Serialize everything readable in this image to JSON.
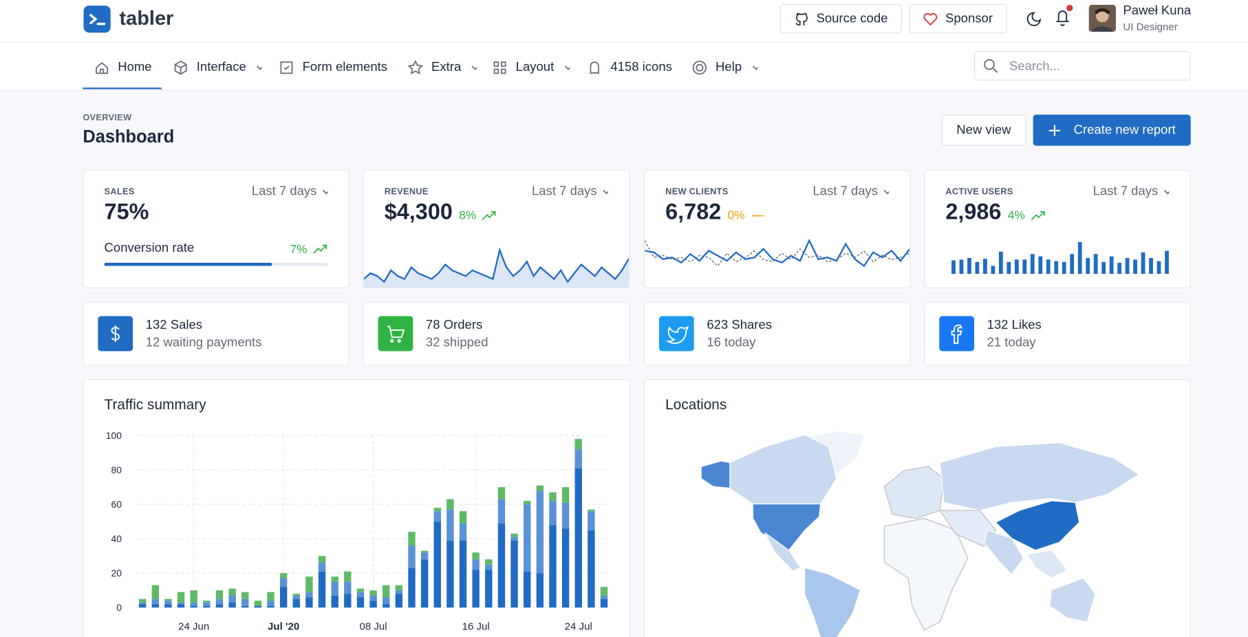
{
  "header": {
    "brand": "tabler",
    "buttons": [
      "Source code",
      "Sponsor"
    ],
    "user": {
      "name": "Paweł Kuna",
      "role": "UI Designer"
    }
  },
  "nav": {
    "items": [
      "Home",
      "Interface",
      "Form elements",
      "Extra",
      "Layout",
      "4158 icons",
      "Help"
    ],
    "search": "Search..."
  },
  "page": {
    "pretitle": "OVERVIEW",
    "title": "Dashboard",
    "actions": [
      "New view",
      "Create new report"
    ]
  },
  "stats": [
    {
      "label": "SALES",
      "period": "Last 7 days",
      "value": "75%",
      "subtitle": "Conversion rate",
      "change": "7%",
      "progress": 75
    },
    {
      "label": "REVENUE",
      "period": "Last 7 days",
      "value": "$4,300",
      "change": "8%",
      "spark": [
        10,
        14,
        12,
        8,
        16,
        12,
        10,
        18,
        14,
        12,
        10,
        14,
        20,
        16,
        14,
        12,
        16,
        14,
        12,
        10,
        30,
        18,
        12,
        16,
        22,
        12,
        18,
        14,
        10,
        16,
        8,
        14,
        20,
        16,
        12,
        18,
        14,
        10,
        16,
        24
      ]
    },
    {
      "label": "NEW CLIENTS",
      "period": "Last 7 days",
      "value": "6,782",
      "change": "0%",
      "spark": [
        22,
        20,
        12,
        14,
        8,
        18,
        10,
        22,
        16,
        10,
        20,
        12,
        14,
        24,
        12,
        8,
        16,
        10,
        34,
        12,
        14,
        10,
        30,
        12,
        4,
        20,
        14,
        22,
        10,
        24
      ],
      "spark2": [
        30,
        14,
        16,
        12,
        14,
        10,
        16,
        14,
        6,
        18,
        10,
        14,
        20,
        12,
        10,
        18,
        12,
        22,
        14,
        16,
        10,
        12,
        18,
        14,
        20,
        10,
        16,
        12,
        14,
        18
      ]
    },
    {
      "label": "ACTIVE USERS",
      "period": "Last 7 days",
      "value": "2,986",
      "change": "4%",
      "bars": [
        17,
        18,
        20,
        15,
        19,
        10,
        28,
        15,
        18,
        18,
        25,
        22,
        18,
        16,
        15,
        25,
        40,
        20,
        25,
        15,
        22,
        14,
        20,
        18,
        27,
        20,
        16,
        29
      ]
    }
  ],
  "mini": [
    {
      "title": "132 Sales",
      "subtitle": "12 waiting payments"
    },
    {
      "title": "78 Orders",
      "subtitle": "32 shipped"
    },
    {
      "title": "623 Shares",
      "subtitle": "16 today"
    },
    {
      "title": "132 Likes",
      "subtitle": "21 today"
    }
  ],
  "locations": {
    "title": "Locations"
  },
  "chart_data": {
    "type": "bar",
    "stacked": true,
    "title": "Traffic summary",
    "categories": [
      null,
      null,
      null,
      null,
      "24 Jun",
      null,
      null,
      null,
      null,
      null,
      null,
      "Jul '20",
      null,
      null,
      null,
      null,
      null,
      null,
      "08 Jul",
      null,
      null,
      null,
      null,
      null,
      null,
      null,
      "16 Jul",
      null,
      null,
      null,
      null,
      null,
      null,
      null,
      "24 Jul",
      null,
      null
    ],
    "series": [
      {
        "color": "#206bc4",
        "values": [
          2,
          2,
          2,
          2,
          1,
          1,
          2,
          3,
          1,
          1,
          1,
          12,
          5,
          6,
          21,
          7,
          8,
          6,
          4,
          2,
          8,
          23,
          28,
          50,
          39,
          39,
          22,
          22,
          49,
          39,
          21,
          20,
          48,
          46,
          81,
          45,
          5
        ]
      },
      {
        "color": "#5b91d7",
        "values": [
          1,
          3,
          2,
          1,
          2,
          2,
          3,
          4,
          4,
          0,
          3,
          5,
          2,
          3,
          5,
          8,
          7,
          3,
          3,
          4,
          2,
          13,
          4,
          6,
          18,
          10,
          6,
          3,
          14,
          2,
          39,
          48,
          14,
          15,
          11,
          11,
          2
        ]
      },
      {
        "color": "#5eba66",
        "values": [
          2,
          8,
          1,
          6,
          7,
          1,
          5,
          4,
          4,
          3,
          5,
          3,
          1,
          9,
          4,
          3,
          6,
          2,
          3,
          7,
          3,
          8,
          1,
          2,
          6,
          7,
          4,
          3,
          7,
          2,
          2,
          3,
          5,
          9,
          6,
          1,
          5
        ]
      }
    ],
    "ylim": [
      0,
      100
    ],
    "yticks": [
      0,
      20,
      40,
      60,
      80,
      100
    ],
    "grid": true
  }
}
